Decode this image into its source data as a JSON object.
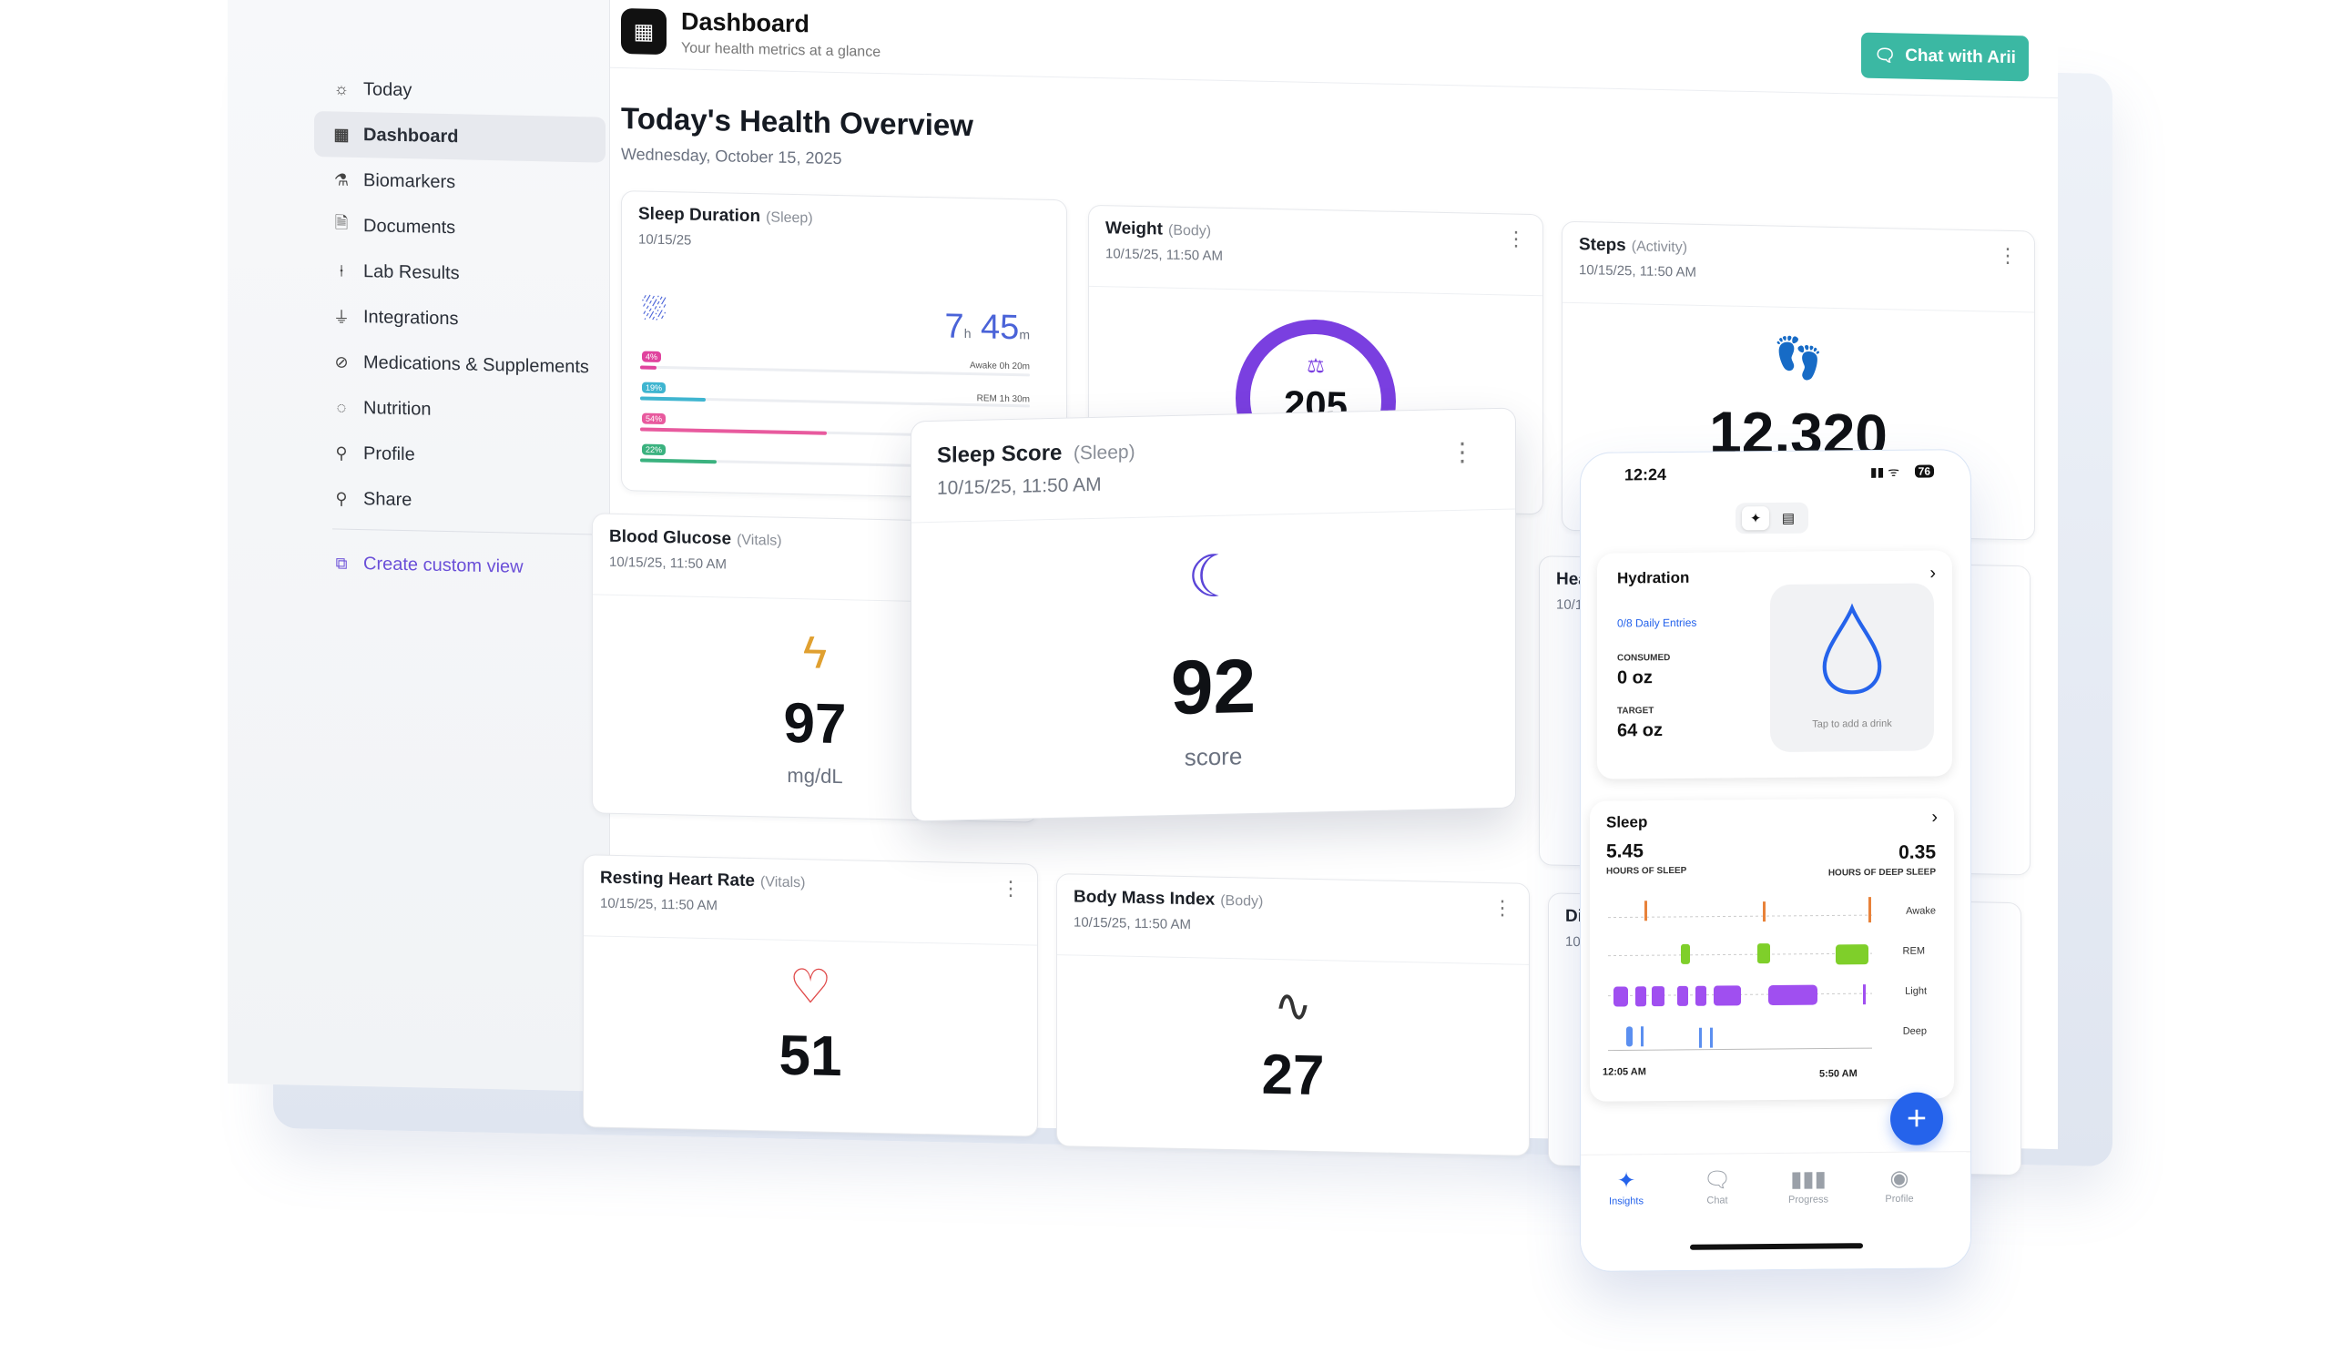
{
  "header": {
    "title": "Dashboard",
    "subtitle": "Your health metrics at a glance",
    "chat_button": "Chat with Arii"
  },
  "sidebar": {
    "items": [
      {
        "label": "Today",
        "icon": "sun-icon"
      },
      {
        "label": "Dashboard",
        "icon": "grid-icon",
        "active": true
      },
      {
        "label": "Biomarkers",
        "icon": "flask-icon"
      },
      {
        "label": "Documents",
        "icon": "document-icon"
      },
      {
        "label": "Lab Results",
        "icon": "test-tube-icon"
      },
      {
        "label": "Integrations",
        "icon": "plug-icon"
      },
      {
        "label": "Medications & Supplements",
        "icon": "pill-icon"
      },
      {
        "label": "Nutrition",
        "icon": "apple-icon"
      },
      {
        "label": "Profile",
        "icon": "user-icon"
      },
      {
        "label": "Share",
        "icon": "user-plus-icon"
      }
    ],
    "create_label": "Create custom view"
  },
  "page": {
    "title": "Today's Health Overview",
    "date": "Wednesday, October 15, 2025"
  },
  "cards": {
    "sleep_duration": {
      "title": "Sleep Duration",
      "category": "(Sleep)",
      "date": "10/15/25",
      "hours": "7",
      "h_unit": "h",
      "minutes": "45",
      "m_unit": "m",
      "awake_note": "Awake 0h 20m",
      "rem_note": "REM 1h 30m",
      "stages": [
        {
          "pct": "4%",
          "color": "#e0439e",
          "fill": 0.04
        },
        {
          "pct": "19%",
          "color": "#3fb5d0",
          "fill": 0.19
        },
        {
          "pct": "54%",
          "color": "#e85a9e",
          "fill": 0.54
        },
        {
          "pct": "22%",
          "color": "#3bb27f",
          "fill": 0.22
        }
      ]
    },
    "weight": {
      "title": "Weight",
      "category": "(Body)",
      "date": "10/15/25, 11:50 AM",
      "value": "205",
      "gauge_color": "#7a3fe0"
    },
    "steps": {
      "title": "Steps",
      "category": "(Activity)",
      "date": "10/15/25, 11:50 AM",
      "value": "12,320"
    },
    "blood_glucose": {
      "title": "Blood Glucose",
      "category": "(Vitals)",
      "date": "10/15/25, 11:50 AM",
      "value": "97",
      "unit": "mg/dL"
    },
    "heart_partial": {
      "title": "Hea",
      "date": "10/1"
    },
    "resting_hr": {
      "title": "Resting Heart Rate",
      "category": "(Vitals)",
      "date": "10/15/25, 11:50 AM",
      "value": "51"
    },
    "bmi": {
      "title": "Body Mass Index",
      "category": "(Body)",
      "date": "10/15/25, 11:50 AM",
      "value": "27"
    },
    "di_partial": {
      "title": "Di",
      "date": "10/"
    }
  },
  "sleep_score": {
    "title": "Sleep Score",
    "category": "(Sleep)",
    "date": "10/15/25, 11:50 AM",
    "value": "92",
    "unit": "score"
  },
  "phone": {
    "time": "12:24",
    "battery": "76",
    "hydration": {
      "title": "Hydration",
      "entries": "0/8 Daily Entries",
      "consumed_label": "CONSUMED",
      "consumed_value": "0 oz",
      "target_label": "TARGET",
      "target_value": "64 oz",
      "tap_hint": "Tap to add a drink"
    },
    "sleep": {
      "title": "Sleep",
      "hours": "5.45",
      "hours_label": "HOURS OF SLEEP",
      "deep": "0.35",
      "deep_label": "HOURS OF DEEP SLEEP",
      "stages": [
        "Awake",
        "REM",
        "Light",
        "Deep"
      ],
      "start": "12:05 AM",
      "end": "5:50 AM"
    },
    "tabs": [
      "Insights",
      "Chat",
      "Progress",
      "Profile"
    ]
  }
}
